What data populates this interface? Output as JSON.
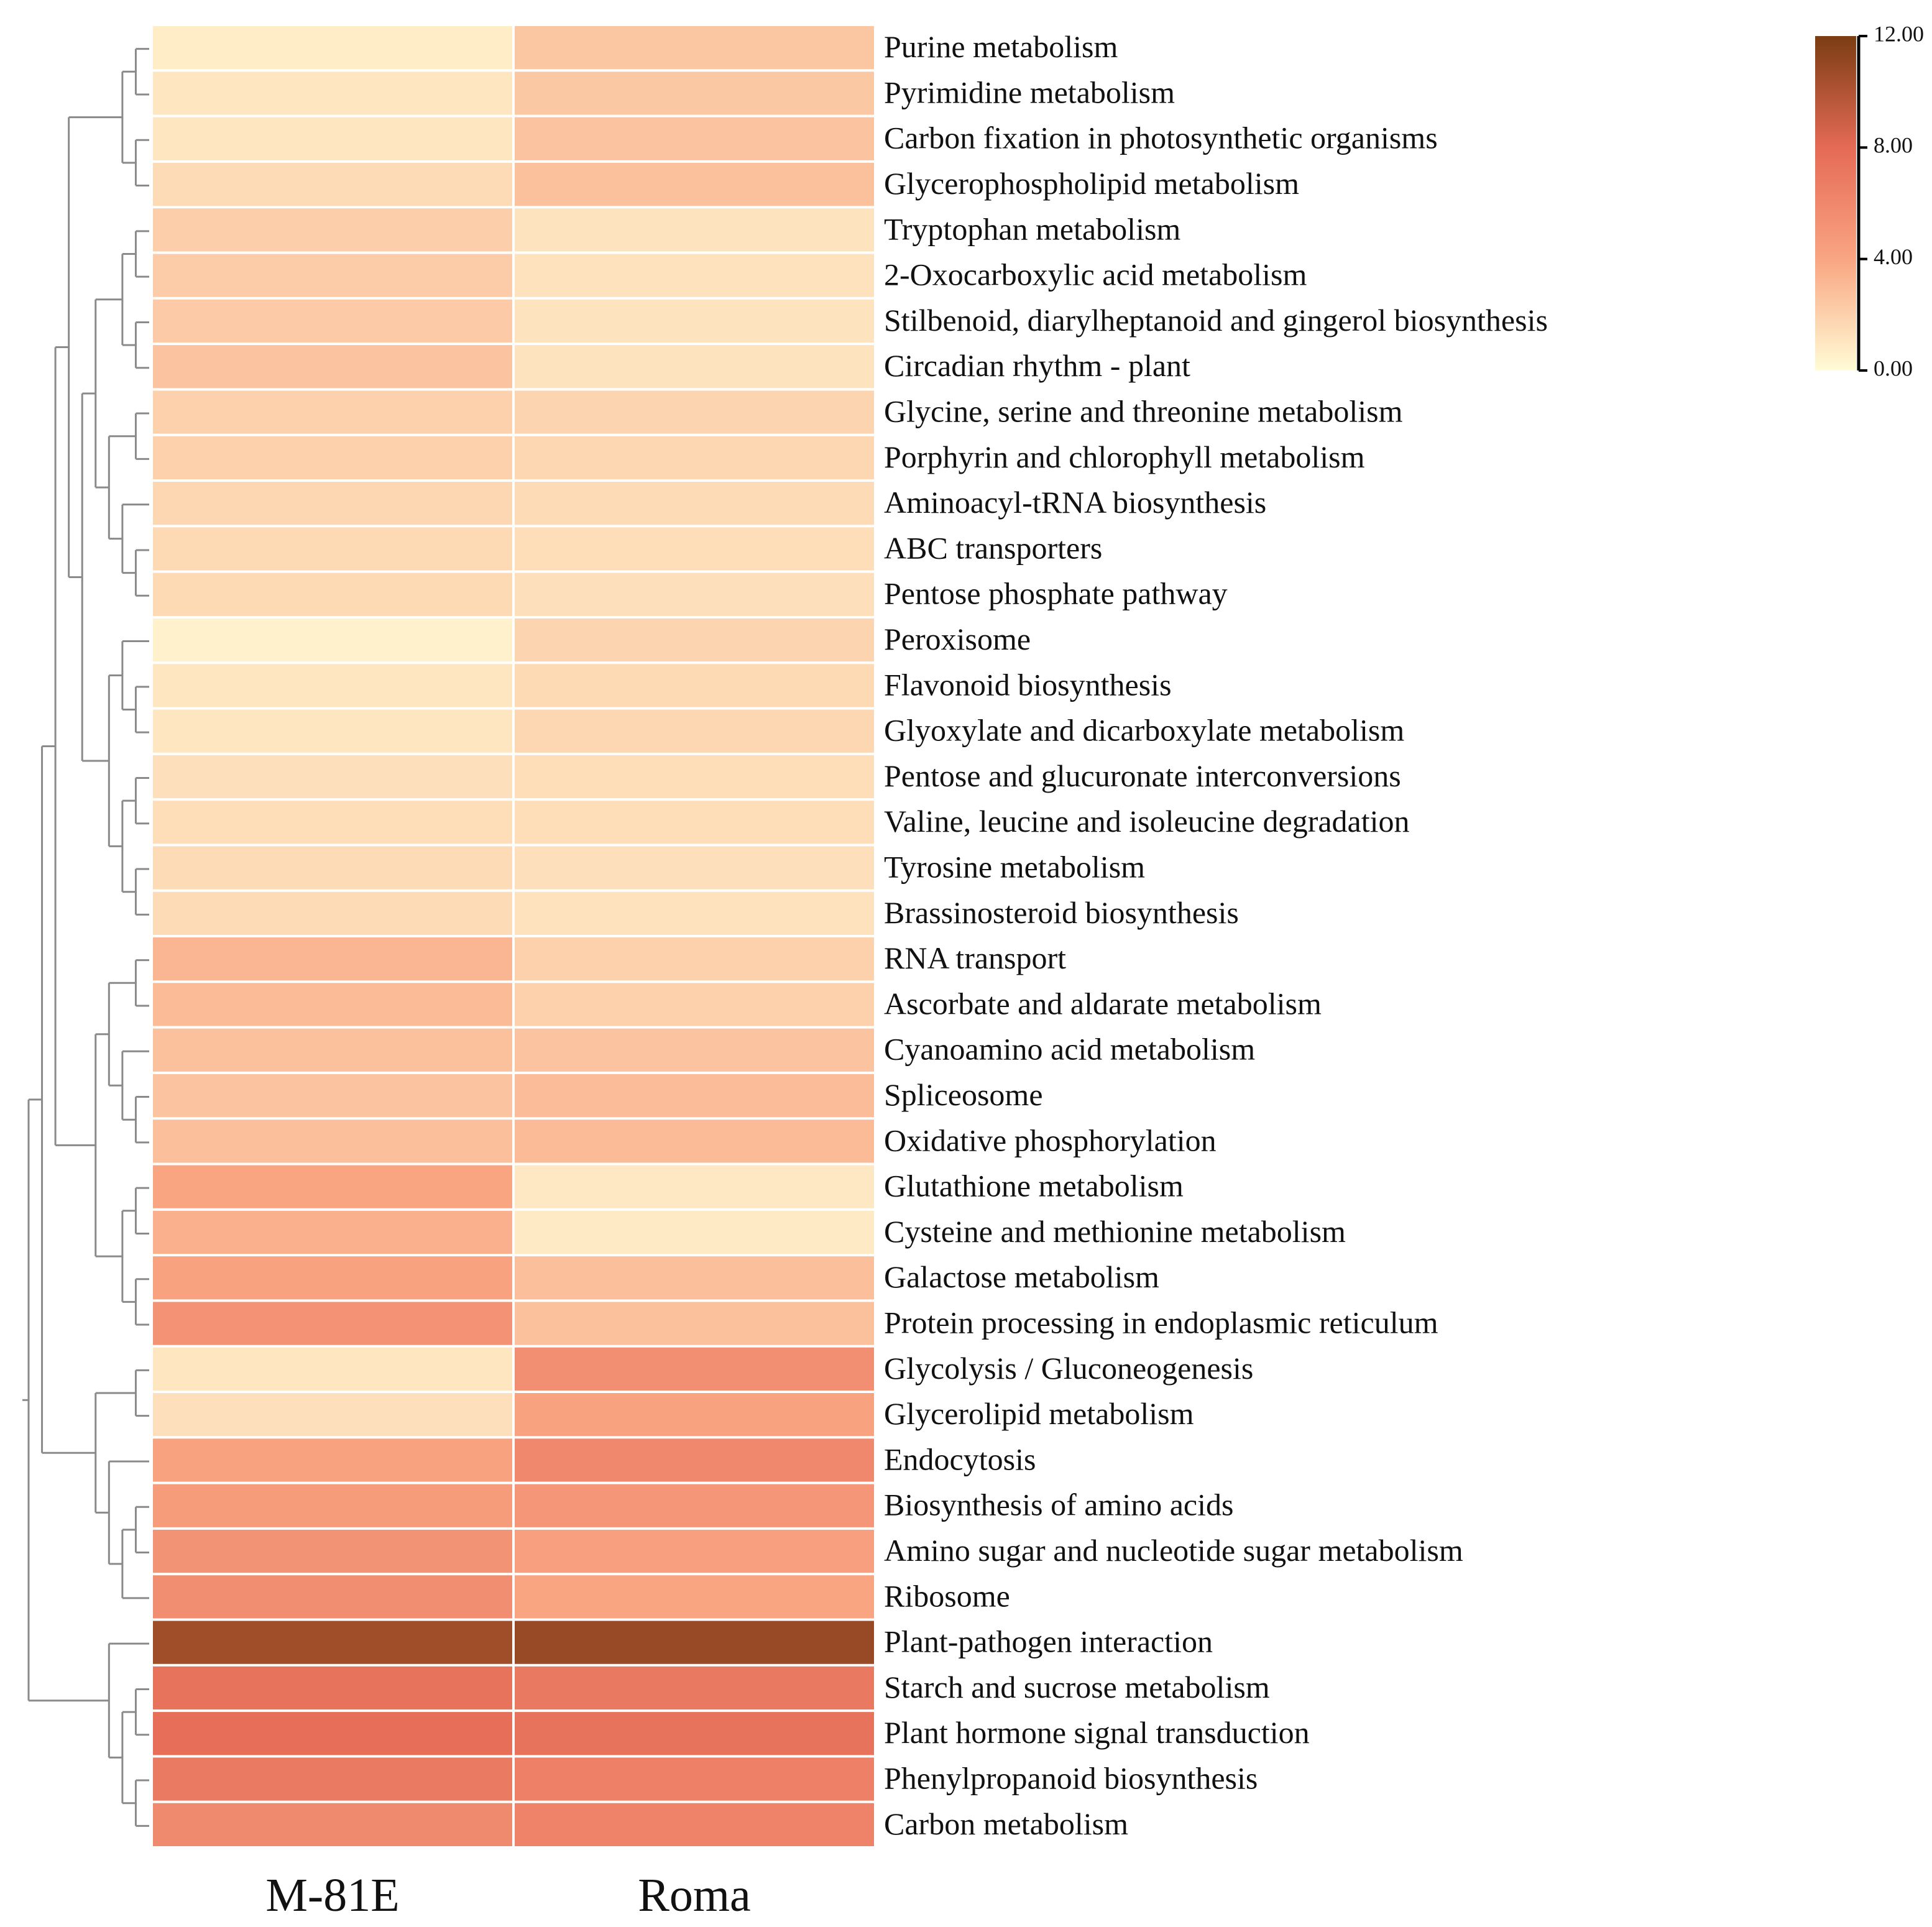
{
  "chart_data": {
    "type": "heatmap",
    "title": "",
    "columns": [
      "M-81E",
      "Roma"
    ],
    "rows": [
      {
        "label": "Purine metabolism",
        "values": [
          0.7,
          2.5
        ]
      },
      {
        "label": "Pyrimidine metabolism",
        "values": [
          1.0,
          2.4
        ]
      },
      {
        "label": "Carbon fixation in photosynthetic organisms",
        "values": [
          1.0,
          2.6
        ]
      },
      {
        "label": "Glycerophospholipid metabolism",
        "values": [
          1.5,
          2.7
        ]
      },
      {
        "label": "Tryptophan metabolism",
        "values": [
          2.1,
          1.1
        ]
      },
      {
        "label": "2-Oxocarboxylic acid metabolism",
        "values": [
          2.2,
          1.2
        ]
      },
      {
        "label": "Stilbenoid, diarylheptanoid and gingerol biosynthesis",
        "values": [
          2.3,
          1.1
        ]
      },
      {
        "label": "Circadian rhythm - plant",
        "values": [
          2.6,
          1.1
        ]
      },
      {
        "label": "Glycine, serine and threonine metabolism",
        "values": [
          2.0,
          1.8
        ]
      },
      {
        "label": "Porphyrin and chlorophyll metabolism",
        "values": [
          2.0,
          1.7
        ]
      },
      {
        "label": "Aminoacyl-tRNA biosynthesis",
        "values": [
          1.7,
          1.5
        ]
      },
      {
        "label": "ABC transporters",
        "values": [
          1.6,
          1.4
        ]
      },
      {
        "label": "Pentose phosphate pathway",
        "values": [
          1.6,
          1.3
        ]
      },
      {
        "label": "Peroxisome",
        "values": [
          0.5,
          1.8
        ]
      },
      {
        "label": "Flavonoid biosynthesis",
        "values": [
          1.0,
          1.6
        ]
      },
      {
        "label": "Glyoxylate and dicarboxylate metabolism",
        "values": [
          1.0,
          1.7
        ]
      },
      {
        "label": "Pentose and glucuronate interconversions",
        "values": [
          1.3,
          1.4
        ]
      },
      {
        "label": "Valine, leucine and isoleucine degradation",
        "values": [
          1.4,
          1.4
        ]
      },
      {
        "label": "Tyrosine metabolism",
        "values": [
          1.5,
          1.3
        ]
      },
      {
        "label": "Brassinosteroid biosynthesis",
        "values": [
          1.5,
          1.2
        ]
      },
      {
        "label": "RNA transport",
        "values": [
          3.2,
          2.0
        ]
      },
      {
        "label": "Ascorbate and aldarate metabolism",
        "values": [
          3.0,
          2.0
        ]
      },
      {
        "label": "Cyanoamino acid metabolism",
        "values": [
          2.7,
          2.6
        ]
      },
      {
        "label": "Spliceosome",
        "values": [
          2.6,
          2.9
        ]
      },
      {
        "label": "Oxidative phosphorylation",
        "values": [
          2.8,
          3.0
        ]
      },
      {
        "label": "Glutathione metabolism",
        "values": [
          4.0,
          0.9
        ]
      },
      {
        "label": "Cysteine and methionine metabolism",
        "values": [
          3.5,
          0.8
        ]
      },
      {
        "label": "Galactose metabolism",
        "values": [
          4.2,
          2.8
        ]
      },
      {
        "label": "Protein processing in endoplasmic reticulum",
        "values": [
          5.3,
          2.7
        ]
      },
      {
        "label": "Glycolysis / Gluconeogenesis",
        "values": [
          1.0,
          5.5
        ]
      },
      {
        "label": "Glycerolipid metabolism",
        "values": [
          1.3,
          4.2
        ]
      },
      {
        "label": "Endocytosis",
        "values": [
          4.2,
          6.0
        ]
      },
      {
        "label": "Biosynthesis of amino acids",
        "values": [
          4.6,
          5.0
        ]
      },
      {
        "label": "Amino sugar and nucleotide sugar metabolism",
        "values": [
          5.2,
          4.4
        ]
      },
      {
        "label": "Ribosome",
        "values": [
          5.6,
          4.0
        ]
      },
      {
        "label": "Plant-pathogen interaction",
        "values": [
          10.6,
          10.9
        ]
      },
      {
        "label": "Starch and sucrose metabolism",
        "values": [
          7.4,
          7.0
        ]
      },
      {
        "label": "Plant hormone signal transduction",
        "values": [
          7.7,
          7.4
        ]
      },
      {
        "label": "Phenylpropanoid biosynthesis",
        "values": [
          6.9,
          6.5
        ]
      },
      {
        "label": "Carbon metabolism",
        "values": [
          5.8,
          6.3
        ]
      }
    ],
    "colorbar": {
      "min": 0,
      "max": 12,
      "ticks": [
        "0.00",
        "4.00",
        "8.00",
        "12.00"
      ],
      "tick_values": [
        0,
        4,
        8,
        12
      ],
      "colors": [
        "#fffcd6",
        "#f9a582",
        "#e56a56",
        "#7b3d12"
      ]
    },
    "dendrogram": "row clustering tree (hierarchical)"
  }
}
